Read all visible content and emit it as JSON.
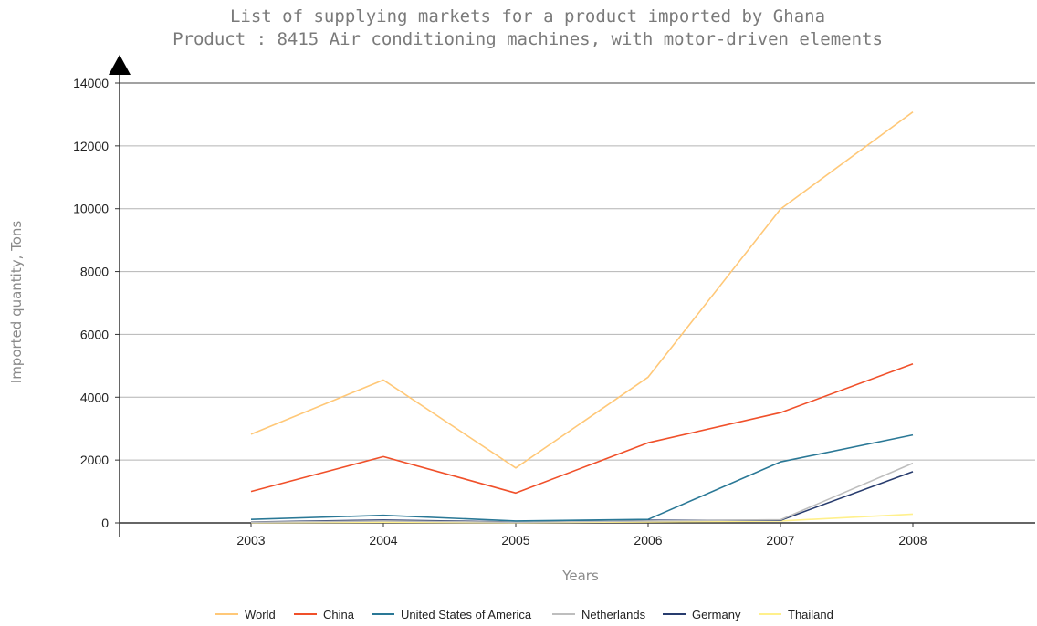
{
  "chart_data": {
    "type": "line",
    "title": "List of supplying markets for a product imported by Ghana",
    "subtitle": "Product : 8415 Air conditioning machines, with motor-driven elements",
    "xlabel": "Years",
    "ylabel": "Imported quantity, Tons",
    "x": [
      "2003",
      "2004",
      "2005",
      "2006",
      "2007",
      "2008"
    ],
    "ylim": [
      0,
      14000
    ],
    "yticks": [
      0,
      2000,
      4000,
      6000,
      8000,
      10000,
      12000,
      14000
    ],
    "grid": true,
    "legend_position": "bottom",
    "series": [
      {
        "name": "World",
        "color": "#ffc878",
        "values": [
          2820,
          4550,
          1750,
          4640,
          9990,
          13080
        ]
      },
      {
        "name": "China",
        "color": "#f0502a",
        "values": [
          1000,
          2110,
          950,
          2550,
          3510,
          5060
        ]
      },
      {
        "name": "United States of America",
        "color": "#2a7896",
        "values": [
          110,
          240,
          60,
          110,
          1940,
          2800
        ]
      },
      {
        "name": "Netherlands",
        "color": "#bebebe",
        "values": [
          20,
          60,
          20,
          60,
          100,
          1900
        ]
      },
      {
        "name": "Germany",
        "color": "#283c6e",
        "values": [
          30,
          90,
          30,
          80,
          80,
          1630
        ]
      },
      {
        "name": "Thailand",
        "color": "#fff08c",
        "values": [
          10,
          20,
          10,
          30,
          60,
          280
        ]
      }
    ]
  }
}
